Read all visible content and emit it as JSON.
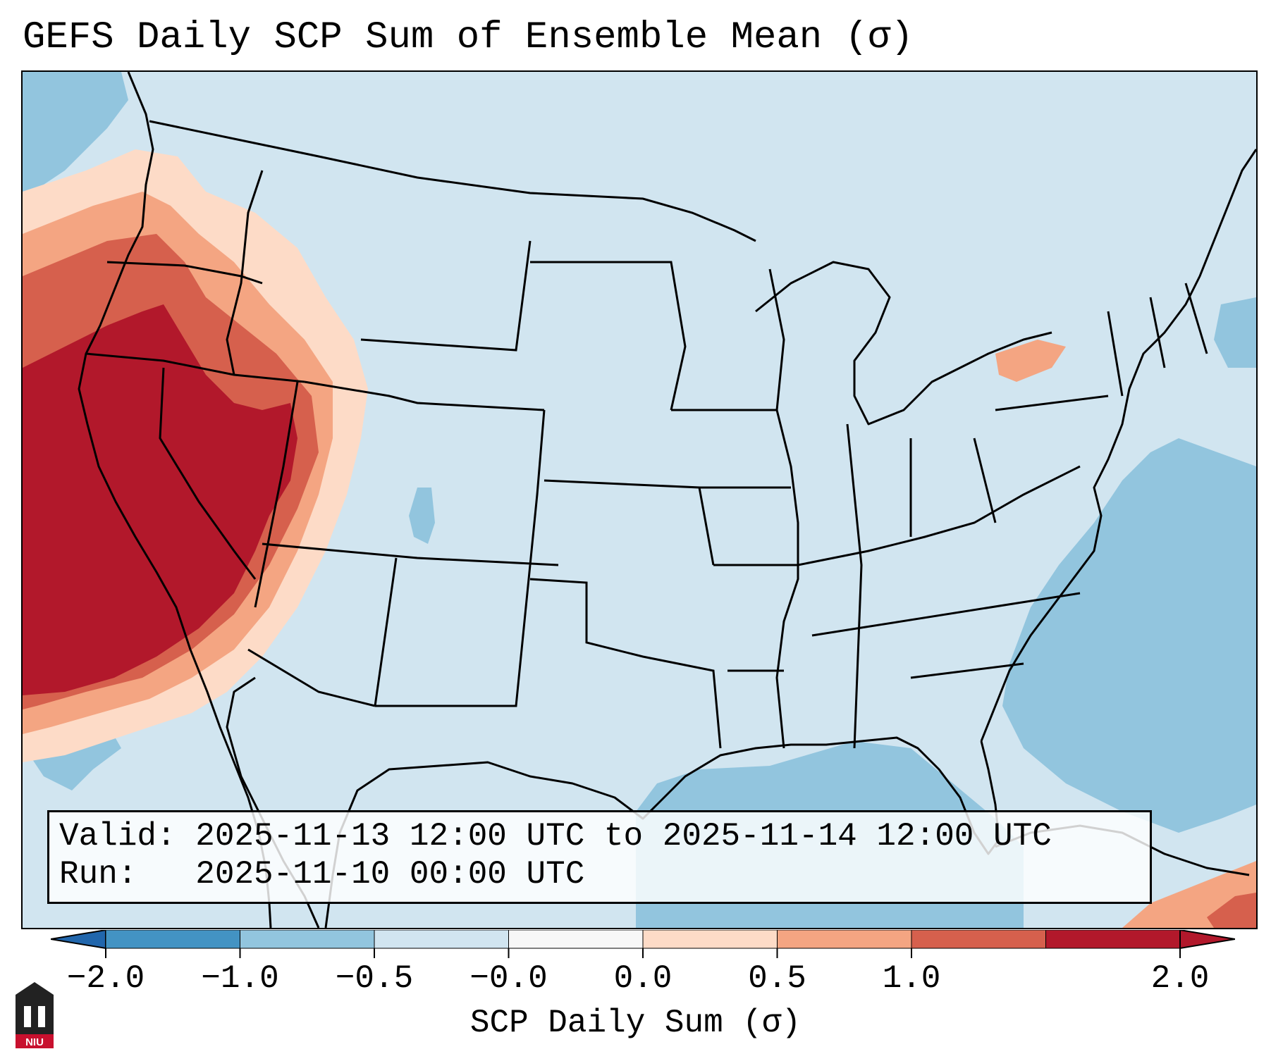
{
  "title": "GEFS Daily SCP Sum of Ensemble Mean (σ)",
  "info": {
    "valid_line": "Valid: 2025-11-13 12:00 UTC to 2025-11-14 12:00 UTC",
    "run_line": "Run:   2025-11-10 00:00 UTC"
  },
  "colorbar": {
    "label": "SCP Daily Sum (σ)",
    "ticks": [
      "−2.0",
      "−1.0",
      "−0.5",
      "−0.0",
      "0.0",
      "0.5",
      "1.0",
      "2.0"
    ],
    "colors": [
      "#4393c3",
      "#92c5de",
      "#d1e5f0",
      "#f7f7f7",
      "#fddbc7",
      "#f4a582",
      "#d6604d",
      "#b2182b"
    ],
    "extend_low_color": "#2166ac",
    "extend_high_color": "#b2182b"
  },
  "map": {
    "background_color": "#d1e5f0",
    "gulf_color": "#92c5de",
    "west_high_color": "#b2182b",
    "coast_color": "#000000"
  },
  "logo": {
    "text": "NIU",
    "color": "#c8102e"
  }
}
